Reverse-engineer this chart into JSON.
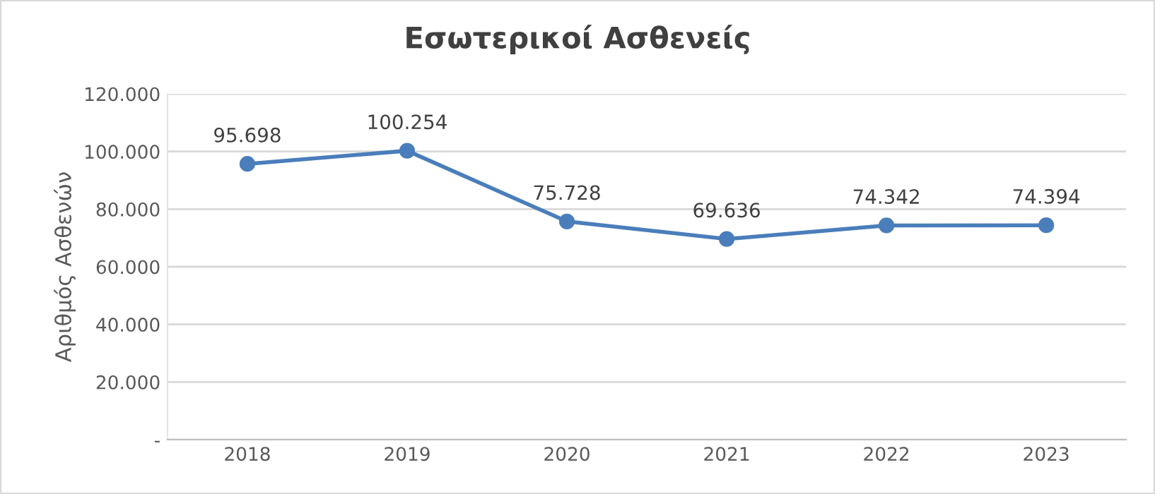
{
  "chart_data": {
    "type": "line",
    "title": "Εσωτερικοί Ασθενείς",
    "ylabel": "Αριθμός Ασθενών",
    "categories": [
      "2018",
      "2019",
      "2020",
      "2021",
      "2022",
      "2023"
    ],
    "series": [
      {
        "color": "#4a7ebb",
        "values": [
          95698,
          100254,
          75728,
          69636,
          74342,
          74394
        ],
        "value_labels": [
          "95.698",
          "100.254",
          "75.728",
          "69.636",
          "74.342",
          "74.394"
        ]
      }
    ],
    "ylim": [
      0,
      120000
    ],
    "yticks": [
      {
        "value": 0,
        "label": "-"
      },
      {
        "value": 20000,
        "label": "20.000"
      },
      {
        "value": 40000,
        "label": "40.000"
      },
      {
        "value": 60000,
        "label": "60.000"
      },
      {
        "value": 80000,
        "label": "80.000"
      },
      {
        "value": 100000,
        "label": "100.000"
      },
      {
        "value": 120000,
        "label": "120.000"
      }
    ],
    "grid": "y",
    "marker": "circle",
    "line_style": "solid"
  }
}
